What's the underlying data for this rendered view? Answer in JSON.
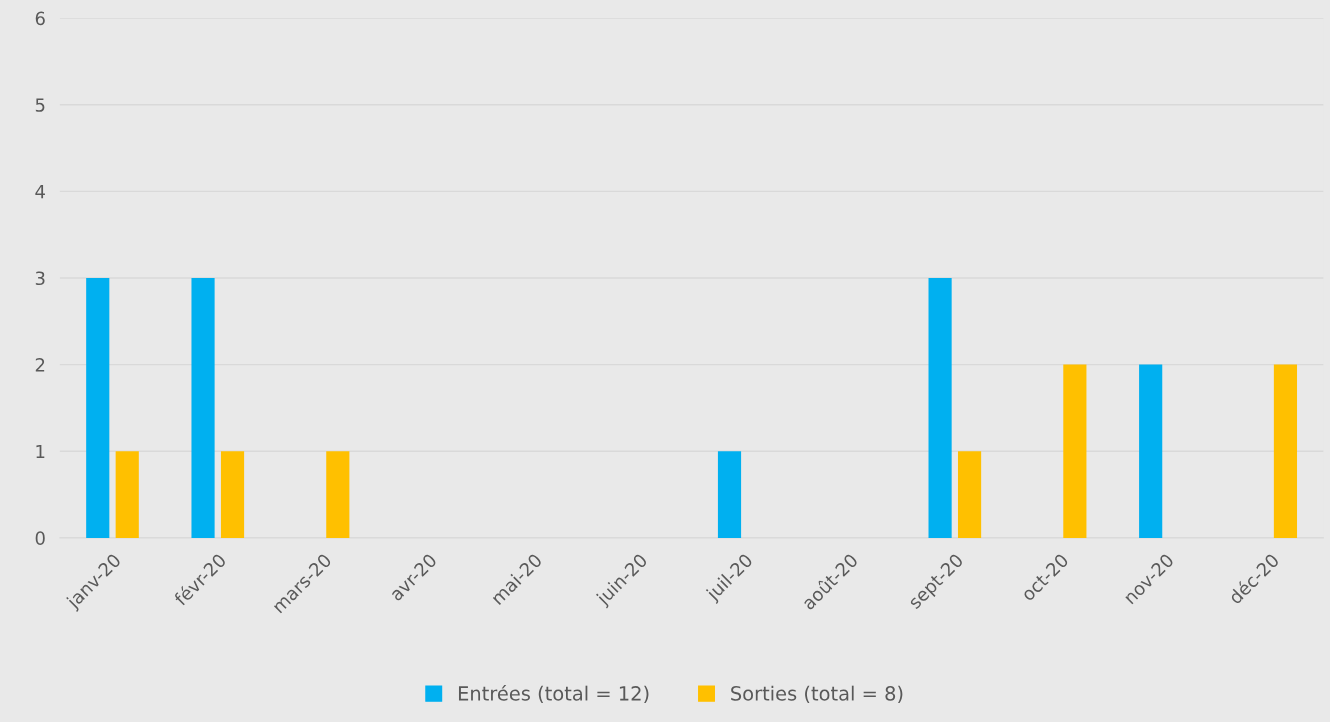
{
  "chart_data": {
    "type": "bar",
    "categories": [
      "janv-20",
      "févr-20",
      "mars-20",
      "avr-20",
      "mai-20",
      "juin-20",
      "juil-20",
      "août-20",
      "sept-20",
      "oct-20",
      "nov-20",
      "déc-20"
    ],
    "series": [
      {
        "name": "Entrées (total = 12)",
        "color": "#00b0f0",
        "values": [
          3,
          3,
          0,
          0,
          0,
          0,
          1,
          0,
          3,
          0,
          2,
          0
        ]
      },
      {
        "name": "Sorties (total = 8)",
        "color": "#ffc000",
        "values": [
          1,
          1,
          1,
          0,
          0,
          0,
          0,
          0,
          1,
          2,
          0,
          2
        ]
      }
    ],
    "ylim": [
      0,
      6
    ],
    "yticks": [
      0,
      1,
      2,
      3,
      4,
      5,
      6
    ],
    "grid": "y",
    "legend": "bottom"
  }
}
